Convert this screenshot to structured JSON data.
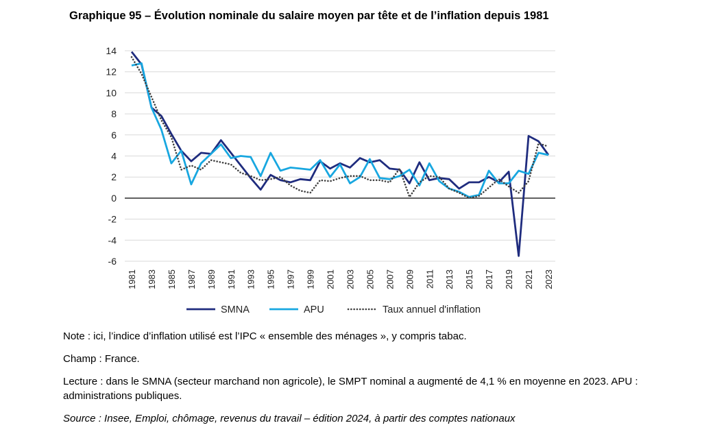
{
  "title": "Graphique 95 – Évolution nominale du salaire moyen par tête et de l’inflation depuis 1981",
  "notes": {
    "note": "Note : ici, l’indice d’inflation utilisé est l’IPC « ensemble des ménages », y compris tabac.",
    "champ": "Champ : France.",
    "lecture": "Lecture : dans le SMNA (secteur marchand non agricole), le SMPT nominal a augmenté de 4,1 % en moyenne en 2023. APU : administrations publiques.",
    "source": "Source : Insee, Emploi, chômage, revenus du travail – édition 2024, à partir des comptes nationaux"
  },
  "chart_data": {
    "type": "line",
    "x": [
      1981,
      1982,
      1983,
      1984,
      1985,
      1986,
      1987,
      1988,
      1989,
      1990,
      1991,
      1992,
      1993,
      1994,
      1995,
      1996,
      1997,
      1998,
      1999,
      2000,
      2001,
      2002,
      2003,
      2004,
      2005,
      2006,
      2007,
      2008,
      2009,
      2010,
      2011,
      2012,
      2013,
      2014,
      2015,
      2016,
      2017,
      2018,
      2019,
      2020,
      2021,
      2022,
      2023
    ],
    "x_tick_labels": [
      "1981",
      "1983",
      "1985",
      "1987",
      "1989",
      "1991",
      "1993",
      "1995",
      "1997",
      "1999",
      "2001",
      "2003",
      "2005",
      "2007",
      "2009",
      "2011",
      "2013",
      "2015",
      "2017",
      "2019",
      "2021",
      "2023"
    ],
    "y_ticks": [
      "14",
      "12",
      "10",
      "8",
      "6",
      "4",
      "2",
      "0",
      "-2",
      "-4",
      "-6"
    ],
    "ylim": [
      -6,
      14
    ],
    "grid": true,
    "legend_position": "bottom",
    "series": [
      {
        "name": "SMNA",
        "color": "#1F2C7E",
        "style": "solid",
        "values": [
          13.9,
          12.7,
          8.6,
          7.8,
          6.1,
          4.5,
          3.5,
          4.3,
          4.2,
          5.5,
          4.3,
          3.1,
          1.9,
          0.8,
          2.2,
          1.7,
          1.5,
          1.8,
          1.7,
          3.5,
          2.8,
          3.3,
          2.9,
          3.8,
          3.4,
          3.6,
          2.8,
          2.7,
          1.4,
          3.4,
          1.7,
          1.9,
          1.8,
          0.9,
          1.5,
          1.5,
          2.0,
          1.5,
          2.5,
          -5.5,
          5.9,
          5.4,
          4.1
        ]
      },
      {
        "name": "APU",
        "color": "#18A7E0",
        "style": "solid",
        "values": [
          12.6,
          12.8,
          8.6,
          6.5,
          3.3,
          4.5,
          1.3,
          3.3,
          4.2,
          5.1,
          3.8,
          4.0,
          3.9,
          2.1,
          4.3,
          2.6,
          2.9,
          2.8,
          2.7,
          3.6,
          2.0,
          3.2,
          1.4,
          2.0,
          3.7,
          1.9,
          1.8,
          2.1,
          2.7,
          1.2,
          3.3,
          1.6,
          0.9,
          0.6,
          0.1,
          0.3,
          2.6,
          1.4,
          1.4,
          2.6,
          2.3,
          4.3,
          4.1
        ]
      },
      {
        "name": "Taux annuel d'inflation",
        "color": "#404040",
        "style": "dotted",
        "values": [
          13.4,
          11.8,
          9.6,
          7.4,
          5.8,
          2.7,
          3.1,
          2.7,
          3.6,
          3.4,
          3.2,
          2.4,
          2.1,
          1.7,
          1.8,
          2.0,
          1.2,
          0.7,
          0.5,
          1.7,
          1.6,
          1.9,
          2.1,
          2.1,
          1.7,
          1.7,
          1.5,
          2.8,
          0.1,
          1.5,
          2.1,
          2.0,
          0.9,
          0.5,
          0.0,
          0.2,
          1.0,
          1.8,
          1.1,
          0.5,
          1.6,
          5.2,
          4.9
        ]
      }
    ]
  }
}
